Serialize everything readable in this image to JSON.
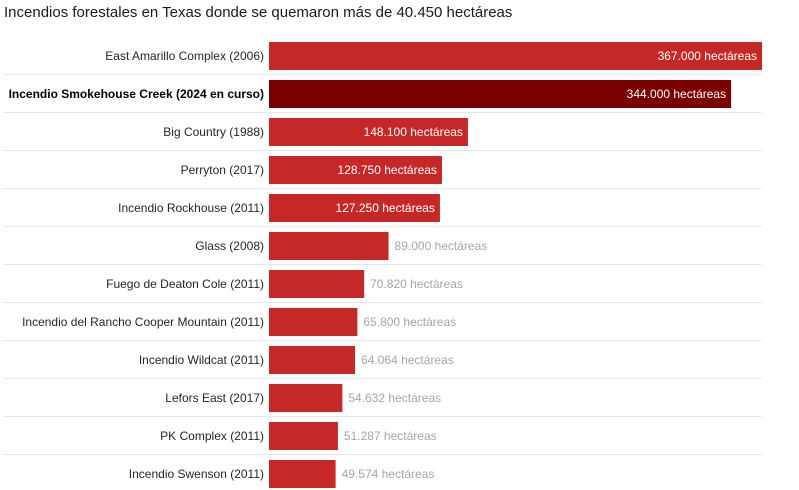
{
  "title": "Incendios forestales en Texas donde se quemaron más de 40.450 hectáreas",
  "colors": {
    "bar": "#c62828",
    "bar_highlight": "#7a0000",
    "value_inside": "#ffffff",
    "value_outside": "#a6a6a6",
    "divider": "#e6e6e6"
  },
  "chart_data": {
    "type": "bar",
    "orientation": "horizontal",
    "title": "Incendios forestales en Texas donde se quemaron más de 40.450 hectáreas",
    "unit": "hectáreas",
    "xlim": [
      0,
      367000
    ],
    "categories": [
      "East Amarillo Complex (2006)",
      "Incendio Smokehouse Creek (2024 en curso)",
      "Big Country (1988)",
      "Perryton (2017)",
      "Incendio Rockhouse (2011)",
      "Glass (2008)",
      "Fuego de Deaton Cole (2011)",
      "Incendio del Rancho Cooper Mountain (2011)",
      "Incendio Wildcat (2011)",
      "Lefors East (2017)",
      "PK Complex (2011)",
      "Incendio Swenson (2011)"
    ],
    "values": [
      367000,
      344000,
      148100,
      128750,
      127250,
      89000,
      70820,
      65800,
      64064,
      54632,
      51287,
      49574
    ],
    "value_labels": [
      "367.000 hectáreas",
      "344.000 hectáreas",
      "148.100 hectáreas",
      "128.750 hectáreas",
      "127.250 hectáreas",
      "89.000 hectáreas",
      "70.820 hectáreas",
      "65.800 hectáreas",
      "64.064 hectáreas",
      "54.632 hectáreas",
      "51.287 hectáreas",
      "49.574 hectáreas"
    ],
    "highlighted": "Incendio Smokehouse Creek (2024 en curso)"
  }
}
